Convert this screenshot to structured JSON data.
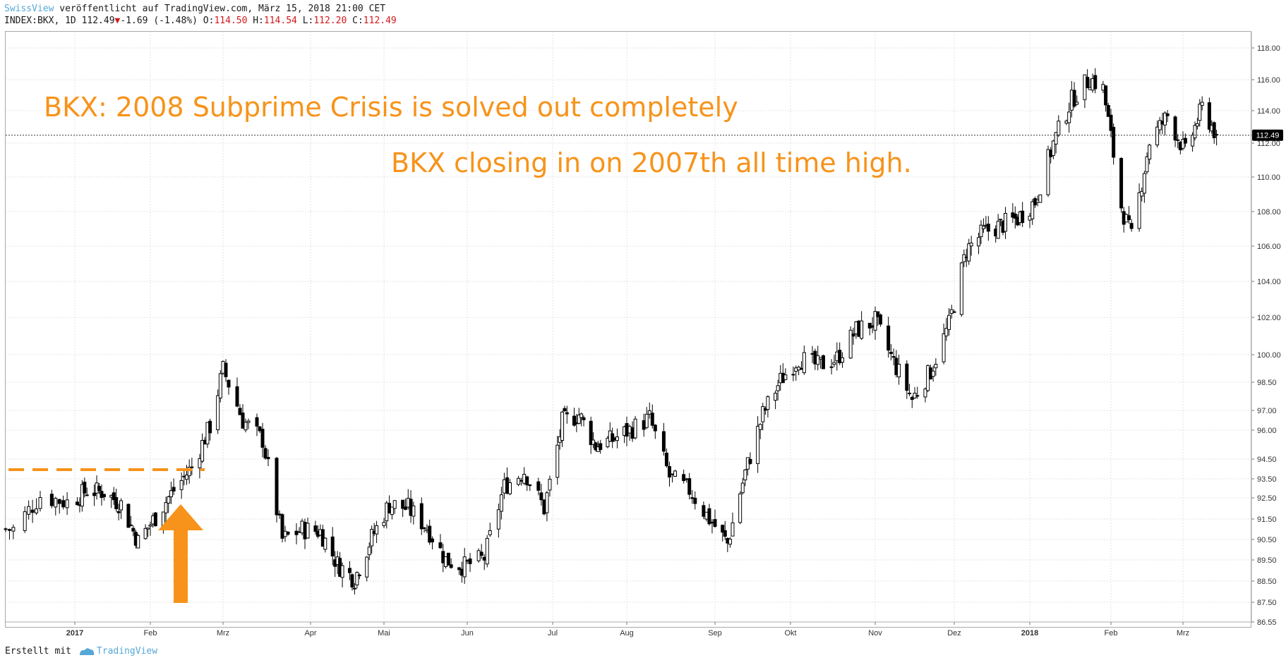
{
  "header": {
    "brand": "SwissView",
    "published": " veröffentlicht auf TradingView.com, März 15, 2018 21:00 CET",
    "symbol": "INDEX:BKX, 1D",
    "last": "112.49",
    "change": "-1.69 (-1.48%)",
    "o_label": "O:",
    "o_val": "114.50",
    "h_label": "H:",
    "h_val": "114.54",
    "l_label": "L:",
    "l_val": "112.20",
    "c_label": "C:",
    "c_val": "112.49"
  },
  "footer": {
    "made_with": "Erstellt mit",
    "brand": "TradingView"
  },
  "annotations": {
    "line1": "BKX: 2008 Subprime Crisis is solved out completely",
    "line2": "BKX closing in on 2007th all time high."
  },
  "colors": {
    "accent": "#f7931a",
    "grid": "#e3e3e3",
    "candle": "#000000",
    "price_tag_bg": "#000000",
    "brand": "#56a8d6"
  },
  "chart_data": {
    "type": "candlestick",
    "title": "",
    "xlabel": "",
    "ylabel": "",
    "y_ticks": [
      "118.00",
      "116.00",
      "114.00",
      "112.00",
      "110.00",
      "108.00",
      "106.00",
      "104.00",
      "102.00",
      "100.00",
      "98.50",
      "97.00",
      "96.00",
      "94.50",
      "93.50",
      "92.50",
      "91.50",
      "90.50",
      "89.50",
      "88.50",
      "87.50",
      "86.55"
    ],
    "x_ticks": [
      "2017",
      "Feb",
      "Mrz",
      "Apr",
      "Mai",
      "Jun",
      "Jul",
      "Aug",
      "Sep",
      "Okt",
      "Nov",
      "Dez",
      "2018",
      "Feb",
      "Mrz"
    ],
    "last_price_label": "112.49",
    "series": [
      {
        "name": "INDEX:BKX",
        "points": [
          [
            "2016-12-16",
            91.0
          ],
          [
            "2016-12-23",
            92.6
          ],
          [
            "2016-12-30",
            92.3
          ],
          [
            "2017-01-06",
            92.9
          ],
          [
            "2017-01-13",
            92.8
          ],
          [
            "2017-01-20",
            92.2
          ],
          [
            "2017-01-27",
            90.4
          ],
          [
            "2017-02-03",
            91.6
          ],
          [
            "2017-02-10",
            92.9
          ],
          [
            "2017-02-17",
            94.1
          ],
          [
            "2017-02-24",
            96.2
          ],
          [
            "2017-03-01",
            99.2
          ],
          [
            "2017-03-08",
            96.5
          ],
          [
            "2017-03-15",
            95.5
          ],
          [
            "2017-03-22",
            90.5
          ],
          [
            "2017-03-29",
            91.0
          ],
          [
            "2017-04-05",
            90.9
          ],
          [
            "2017-04-12",
            89.3
          ],
          [
            "2017-04-19",
            88.6
          ],
          [
            "2017-04-26",
            90.6
          ],
          [
            "2017-05-03",
            92.2
          ],
          [
            "2017-05-10",
            92.0
          ],
          [
            "2017-05-17",
            91.1
          ],
          [
            "2017-05-24",
            89.5
          ],
          [
            "2017-05-31",
            89.2
          ],
          [
            "2017-06-07",
            89.6
          ],
          [
            "2017-06-14",
            93.1
          ],
          [
            "2017-06-21",
            93.9
          ],
          [
            "2017-06-28",
            92.0
          ],
          [
            "2017-07-05",
            96.4
          ],
          [
            "2017-07-12",
            96.8
          ],
          [
            "2017-07-19",
            95.2
          ],
          [
            "2017-07-26",
            95.5
          ],
          [
            "2017-08-02",
            96.0
          ],
          [
            "2017-08-09",
            96.6
          ],
          [
            "2017-08-16",
            93.6
          ],
          [
            "2017-08-23",
            92.9
          ],
          [
            "2017-08-30",
            91.5
          ],
          [
            "2017-09-06",
            90.3
          ],
          [
            "2017-09-13",
            93.8
          ],
          [
            "2017-09-20",
            96.8
          ],
          [
            "2017-09-27",
            98.6
          ],
          [
            "2017-10-04",
            99.8
          ],
          [
            "2017-10-11",
            99.4
          ],
          [
            "2017-10-18",
            99.8
          ],
          [
            "2017-10-25",
            101.3
          ],
          [
            "2017-11-01",
            101.8
          ],
          [
            "2017-11-08",
            99.6
          ],
          [
            "2017-11-15",
            97.6
          ],
          [
            "2017-11-22",
            99.1
          ],
          [
            "2017-11-29",
            101.6
          ],
          [
            "2017-12-06",
            105.8
          ],
          [
            "2017-12-13",
            106.8
          ],
          [
            "2017-12-20",
            107.2
          ],
          [
            "2017-12-27",
            107.6
          ],
          [
            "2018-01-03",
            108.6
          ],
          [
            "2018-01-10",
            112.0
          ],
          [
            "2018-01-17",
            114.7
          ],
          [
            "2018-01-24",
            116.1
          ],
          [
            "2018-01-29",
            115.4
          ],
          [
            "2018-02-05",
            108.3
          ],
          [
            "2018-02-09",
            106.5
          ],
          [
            "2018-02-16",
            112.1
          ],
          [
            "2018-02-23",
            113.7
          ],
          [
            "2018-03-02",
            111.4
          ],
          [
            "2018-03-09",
            114.2
          ],
          [
            "2018-03-15",
            112.49
          ]
        ]
      }
    ]
  }
}
